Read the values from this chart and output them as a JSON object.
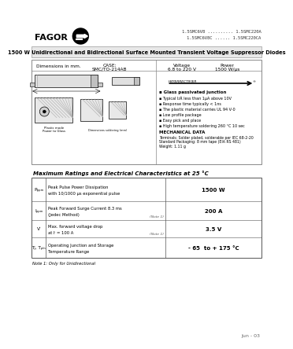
{
  "title_line1": "1.5SMC6V8 .......... 1.5SMC220A",
  "title_line2": "1.5SMC6V8C ...... 1.5SMC220CA",
  "main_title": "1500 W Unidirectional and Bidirectional Surface Mounted Transient Voltage Suppressor Diodes",
  "fagor_text": "FAGOR",
  "case_label": "CASE:\nSMC/TO-214AB",
  "voltage_label": "Voltage\n6.8 to 220 V",
  "power_label": "Power\n1500 W/μs",
  "dim_label": "Dimensions in mm.",
  "features_title": "Glass passivated junction",
  "features": [
    "Typical I₂R less than 1μA above 10V",
    "Response time typically < 1ns",
    "The plastic material carries UL 94 V-0",
    "Low profile package",
    "Easy pick and place",
    "High temperature soldering 260 °C 10 sec"
  ],
  "mech_title": "MECHANICAL DATA",
  "mech_text": "Terminals: Solder plated, solderable per IEC 68-2-20\nStandard Packaging: 8 mm tape (EIA RS 481)\nWeight: 1.11 g",
  "table_title": "Maximum Ratings and Electrical Characteristics at 25 °C",
  "rows": [
    {
      "symbol": "Pₚₚₘ",
      "description": "Peak Pulse Power Dissipation\nwith 10/1000 μs exponential pulse",
      "note": "",
      "value": "1500 W"
    },
    {
      "symbol": "Iₚₚₘ",
      "description": "Peak Forward Surge Current 8.3 ms\n(Jedec Method)",
      "note": "(Note 1)",
      "value": "200 A"
    },
    {
      "symbol": "Vⁱ",
      "description": "Max. forward voltage drop\nat Iⁱ = 100 A",
      "note": "(Note 1)",
      "value": "3.5 V"
    },
    {
      "symbol": "Tⱼ, Tₚₗₙ",
      "description": "Operating Junction and Storage\nTemperature Range",
      "note": "",
      "value": "- 65  to + 175 °C"
    }
  ],
  "note_text": "Note 1: Only for Unidirectional",
  "date_text": "Jun - 03",
  "hyperrectifier_text": "HYPERRECTIFIER"
}
